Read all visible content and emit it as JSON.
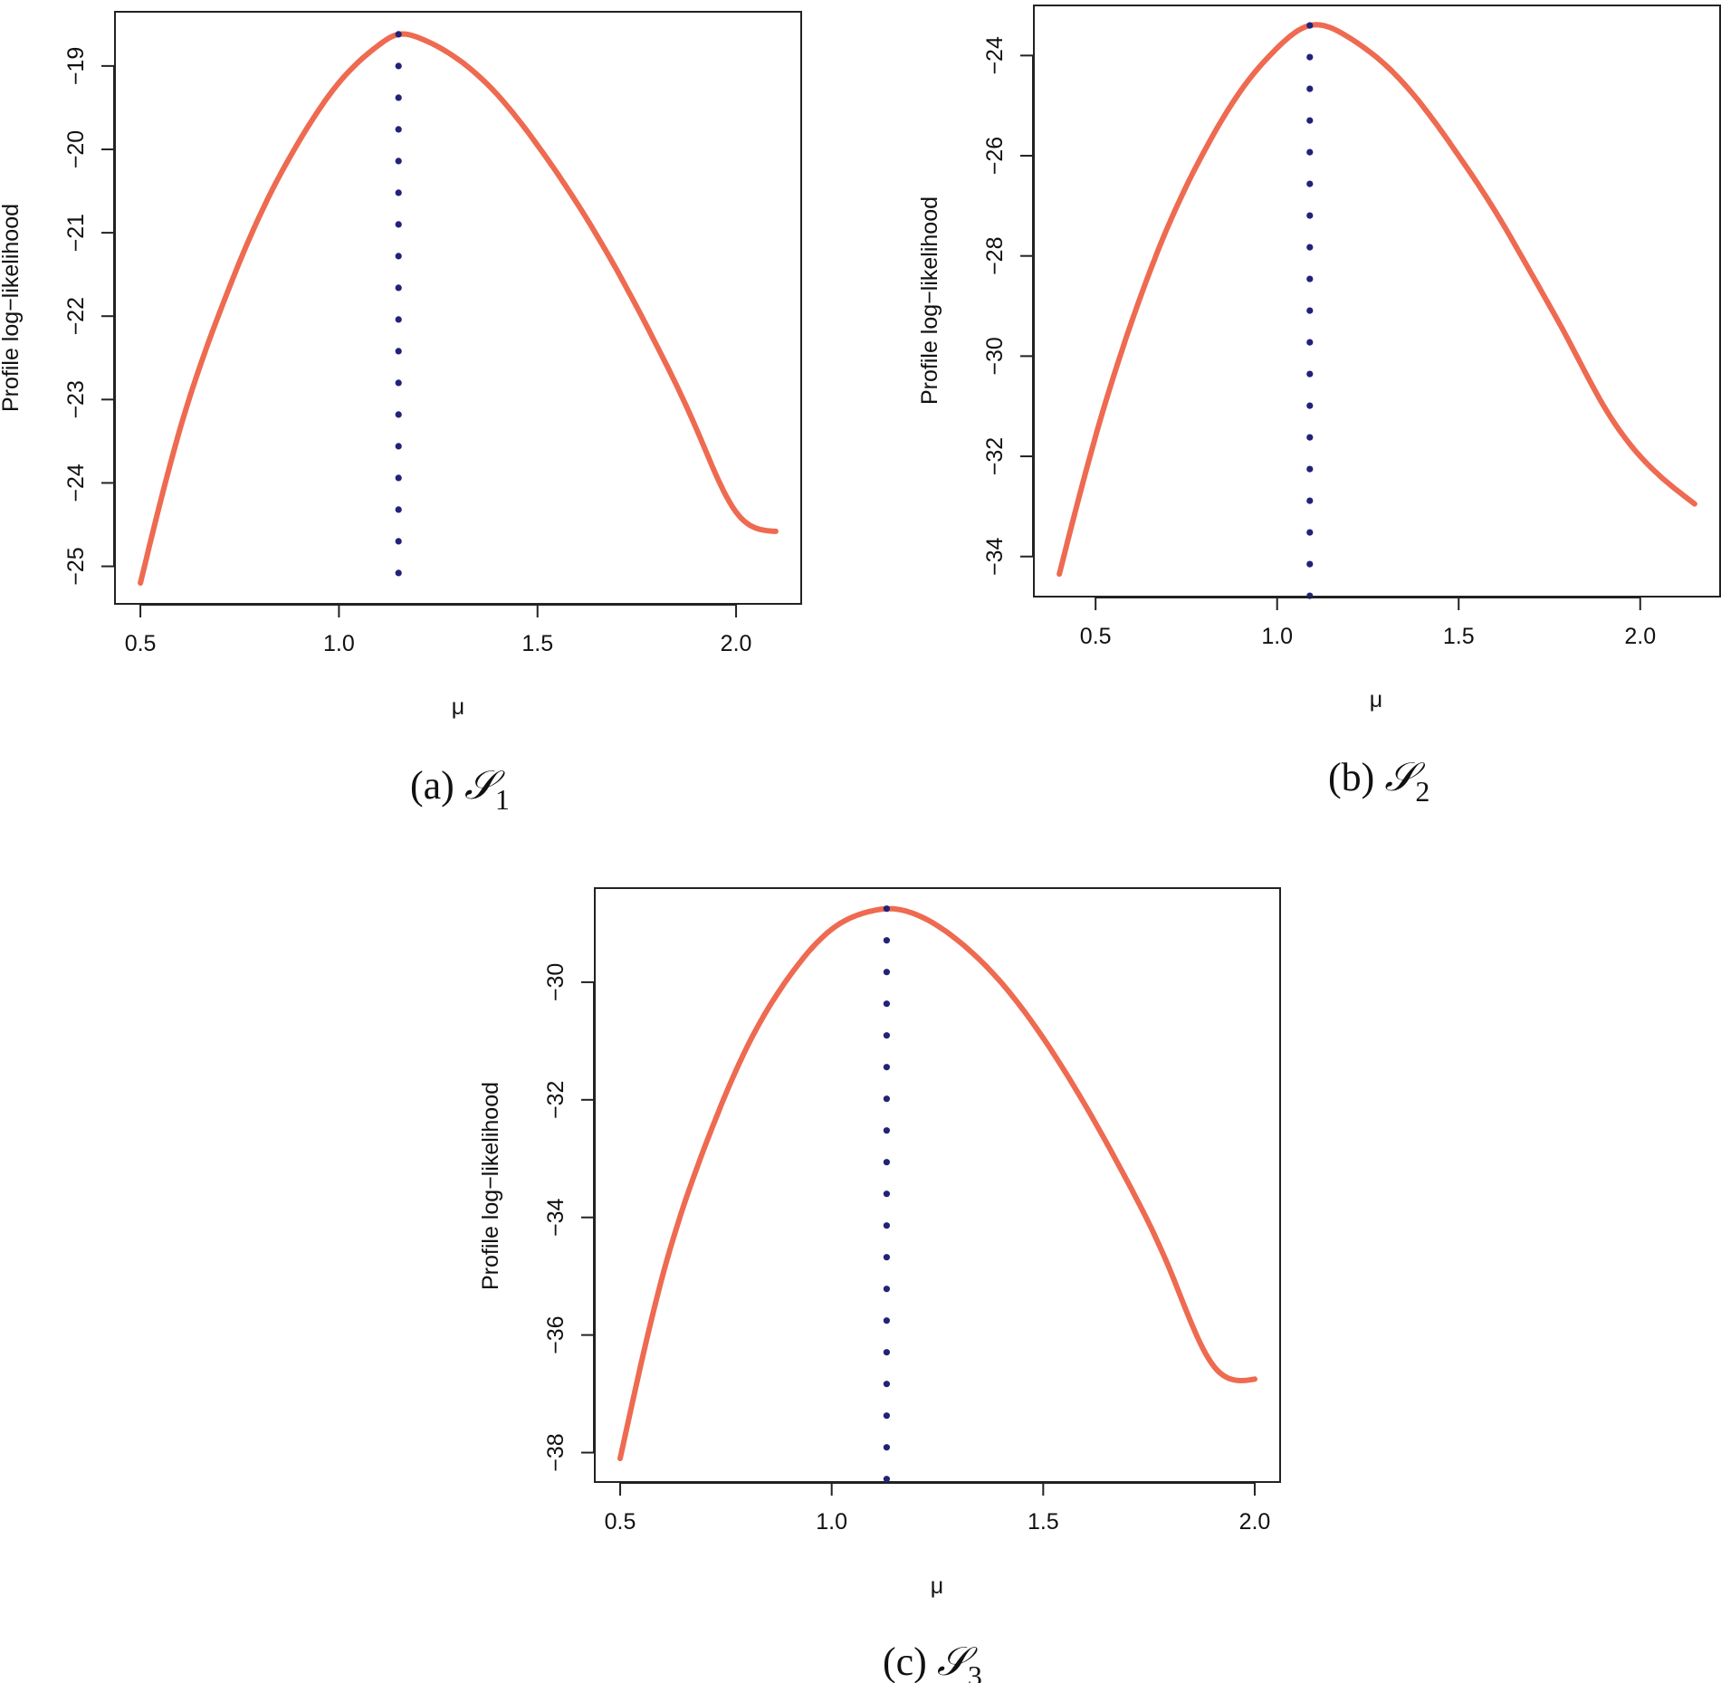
{
  "figure": {
    "colors": {
      "curve": "#EE6A50",
      "mle_line": "#22227A",
      "axis": "#222222"
    }
  },
  "chart_data": [
    {
      "id": "a",
      "type": "line",
      "xlabel": "μ",
      "ylabel": "Profile log−likelihood",
      "caption": {
        "prefix": "(a) ",
        "symbol": "𝒮",
        "subscript": "1"
      },
      "x_ticks": [
        "0.5",
        "1.0",
        "1.5",
        "2.0"
      ],
      "x_tick_values": [
        0.5,
        1.0,
        1.5,
        2.0
      ],
      "y_ticks": [
        "−25",
        "−24",
        "−23",
        "−22",
        "−21",
        "−20",
        "−19"
      ],
      "y_tick_values": [
        -25,
        -24,
        -23,
        -22,
        -21,
        -20,
        -19
      ],
      "xlim": [
        0.436,
        2.164
      ],
      "ylim": [
        -25.45,
        -18.35
      ],
      "x_range": [
        0.5,
        2.1
      ],
      "mle": 1.15,
      "max_loglik": -18.62,
      "series": [
        {
          "name": "profile log-likelihood",
          "x": [
            0.5,
            0.6,
            0.7,
            0.8,
            0.9,
            1.0,
            1.1,
            1.15,
            1.2,
            1.3,
            1.4,
            1.5,
            1.6,
            1.7,
            1.8,
            1.9,
            2.0,
            2.1
          ],
          "y": [
            -25.2,
            -23.35,
            -21.95,
            -20.8,
            -19.9,
            -19.2,
            -18.75,
            -18.62,
            -18.66,
            -18.92,
            -19.35,
            -19.95,
            -20.65,
            -21.45,
            -22.35,
            -23.35,
            -24.35,
            -24.58
          ]
        }
      ]
    },
    {
      "id": "b",
      "type": "line",
      "xlabel": "μ",
      "ylabel": "Profile log−likelihood",
      "caption": {
        "prefix": "(b) ",
        "symbol": "𝒮",
        "subscript": "2"
      },
      "x_ticks": [
        "0.5",
        "1.0",
        "1.5",
        "2.0"
      ],
      "x_tick_values": [
        0.5,
        1.0,
        1.5,
        2.0
      ],
      "y_ticks": [
        "−34",
        "−32",
        "−30",
        "−28",
        "−26",
        "−24"
      ],
      "y_tick_values": [
        -34,
        -32,
        -30,
        -28,
        -26,
        -24
      ],
      "xlim": [
        0.33,
        2.22
      ],
      "ylim": [
        -34.8,
        -23.0
      ],
      "x_range": [
        0.4,
        2.15
      ],
      "mle": 1.09,
      "max_loglik": -23.4,
      "series": [
        {
          "name": "profile log-likelihood",
          "x": [
            0.4,
            0.5,
            0.6,
            0.7,
            0.8,
            0.9,
            1.0,
            1.09,
            1.2,
            1.3,
            1.4,
            1.5,
            1.6,
            1.7,
            1.8,
            1.9,
            2.0,
            2.15
          ],
          "y": [
            -34.35,
            -31.6,
            -29.3,
            -27.4,
            -25.9,
            -24.7,
            -23.85,
            -23.4,
            -23.65,
            -24.2,
            -25.0,
            -26.0,
            -27.1,
            -28.35,
            -29.65,
            -31.0,
            -32.0,
            -32.95
          ]
        }
      ]
    },
    {
      "id": "c",
      "type": "line",
      "xlabel": "μ",
      "ylabel": "Profile log−likelihood",
      "caption": {
        "prefix": "(c) ",
        "symbol": "𝒮",
        "subscript": "3"
      },
      "x_ticks": [
        "0.5",
        "1.0",
        "1.5",
        "2.0"
      ],
      "x_tick_values": [
        0.5,
        1.0,
        1.5,
        2.0
      ],
      "y_ticks": [
        "−38",
        "−36",
        "−34",
        "−32",
        "−30"
      ],
      "y_tick_values": [
        -38,
        -36,
        -34,
        -32,
        -30
      ],
      "xlim": [
        0.44,
        2.06
      ],
      "ylim": [
        -38.5,
        -28.4
      ],
      "x_range": [
        0.5,
        2.0
      ],
      "mle": 1.13,
      "max_loglik": -28.75,
      "series": [
        {
          "name": "profile log-likelihood",
          "x": [
            0.5,
            0.6,
            0.7,
            0.8,
            0.9,
            1.0,
            1.1,
            1.13,
            1.2,
            1.3,
            1.4,
            1.5,
            1.6,
            1.7,
            1.8,
            1.9,
            2.0
          ],
          "y": [
            -38.1,
            -35.0,
            -32.8,
            -31.1,
            -29.9,
            -29.1,
            -28.78,
            -28.75,
            -28.85,
            -29.3,
            -30.0,
            -30.95,
            -32.1,
            -33.4,
            -34.9,
            -36.5,
            -36.75
          ]
        }
      ]
    }
  ]
}
